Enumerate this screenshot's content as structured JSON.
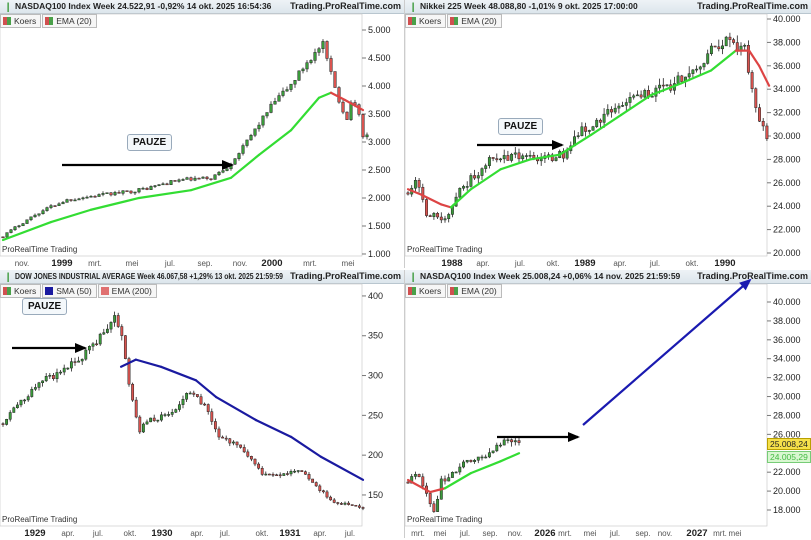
{
  "brand": "Trading.ProRealTime.com",
  "watermark": "ProRealTime Trading",
  "colors": {
    "up": "#3a9a3a",
    "down": "#d9534f",
    "ema_up": "#33dd33",
    "ema_down": "#dd4444",
    "sma": "#1a1aa0",
    "arrow_black": "#000000",
    "arrow_blue": "#1a1ab0",
    "tag_price": "#f5e04a",
    "tag_ema": "#d8f7d0"
  },
  "panels": [
    {
      "title": "NASDAQ100 Index Week 24.522,91 -0,92% 14 okt. 2025 16:54:36",
      "legend": [
        {
          "label": "Koers",
          "color": "#c05050"
        },
        {
          "label": "EMA (20)",
          "color": "#c05050"
        }
      ],
      "annotation": "PAUZE"
    },
    {
      "title": "Nikkei 225 Week 48.088,80 -1,01% 9 okt. 2025 17:00:00",
      "legend": [
        {
          "label": "Koers",
          "color": "#c05050"
        },
        {
          "label": "EMA (20)",
          "color": "#c05050"
        }
      ],
      "annotation": "PAUZE"
    },
    {
      "title": "DOW JONES INDUSTRIAL AVERAGE Week 46.067,58 +1,29% 13 okt. 2025 21:59:59",
      "legend": [
        {
          "label": "Koers",
          "color": "#c05050"
        },
        {
          "label": "SMA (50)",
          "color": "#1a1aa0"
        },
        {
          "label": "EMA (200)",
          "color": "#e07070"
        }
      ],
      "annotation": "PAUZE"
    },
    {
      "title": "NASDAQ100 Index Week 25.008,24 +0,06% 14 nov. 2025 21:59:59",
      "legend": [
        {
          "label": "Koers",
          "color": "#c05050"
        },
        {
          "label": "EMA (20)",
          "color": "#c05050"
        }
      ],
      "price_tag": "25.008,24",
      "ema_tag": "24.005,29"
    }
  ],
  "chart_data": [
    {
      "type": "candlestick",
      "title": "NASDAQ100 Index Week",
      "weeks": 91,
      "ylim": [
        964,
        5286
      ],
      "yticks": [
        {
          "v": 5000,
          "t": "5.000"
        },
        {
          "v": 4500,
          "t": "4.500"
        },
        {
          "v": 4000,
          "t": "4.000"
        },
        {
          "v": 3500,
          "t": "3.500"
        },
        {
          "v": 3000,
          "t": "3.000"
        },
        {
          "v": 2500,
          "t": "2.500"
        },
        {
          "v": 2000,
          "t": "2.000"
        },
        {
          "v": 1500,
          "t": "1.500"
        },
        {
          "v": 1000,
          "t": "1.000"
        }
      ],
      "xticks": [
        {
          "t": "nov.",
          "b": false
        },
        {
          "t": "1999",
          "b": true
        },
        {
          "t": "mrt.",
          "b": false
        },
        {
          "t": "mei",
          "b": false
        },
        {
          "t": "jul.",
          "b": false
        },
        {
          "t": "sep.",
          "b": false
        },
        {
          "t": "nov.",
          "b": false
        },
        {
          "t": "2000",
          "b": true
        },
        {
          "t": "mrt.",
          "b": false
        },
        {
          "t": "mei",
          "b": false
        }
      ],
      "close_path": [
        [
          0,
          1320
        ],
        [
          4,
          1520
        ],
        [
          8,
          1700
        ],
        [
          12,
          1850
        ],
        [
          16,
          1965
        ],
        [
          20,
          2010
        ],
        [
          24,
          2050
        ],
        [
          28,
          2085
        ],
        [
          32,
          2120
        ],
        [
          36,
          2175
        ],
        [
          40,
          2250
        ],
        [
          44,
          2320
        ],
        [
          48,
          2340
        ],
        [
          52,
          2355
        ],
        [
          56,
          2550
        ],
        [
          60,
          2900
        ],
        [
          64,
          3330
        ],
        [
          68,
          3730
        ],
        [
          72,
          4020
        ],
        [
          76,
          4430
        ],
        [
          80,
          4730
        ],
        [
          82,
          4200
        ],
        [
          84,
          3750
        ],
        [
          86,
          3400
        ],
        [
          87,
          3750
        ],
        [
          89,
          3480
        ],
        [
          90,
          3120
        ]
      ],
      "indicator": {
        "name": "EMA (20)",
        "points": [
          [
            0,
            1250
          ],
          [
            12,
            1570
          ],
          [
            22,
            1790
          ],
          [
            34,
            2000
          ],
          [
            47,
            2140
          ],
          [
            57,
            2360
          ],
          [
            64,
            2770
          ],
          [
            72,
            3210
          ],
          [
            79,
            3790
          ],
          [
            82,
            3880
          ],
          [
            85.5,
            3750
          ],
          [
            90,
            3570
          ]
        ],
        "down_from": 81
      }
    },
    {
      "type": "candlestick",
      "title": "Nikkei 225 Week",
      "weeks": 97,
      "ylim": [
        19744,
        40428
      ],
      "yticks": [
        {
          "v": 40000,
          "t": "40.000"
        },
        {
          "v": 38000,
          "t": "38.000"
        },
        {
          "v": 36000,
          "t": "36.000"
        },
        {
          "v": 34000,
          "t": "34.000"
        },
        {
          "v": 32000,
          "t": "32.000"
        },
        {
          "v": 30000,
          "t": "30.000"
        },
        {
          "v": 28000,
          "t": "28.000"
        },
        {
          "v": 26000,
          "t": "26.000"
        },
        {
          "v": 24000,
          "t": "24.000"
        },
        {
          "v": 22000,
          "t": "22.000"
        },
        {
          "v": 20000,
          "t": "20.000"
        }
      ],
      "xticks": [
        {
          "t": "1988",
          "b": true
        },
        {
          "t": "apr.",
          "b": false
        },
        {
          "t": "jul.",
          "b": false
        },
        {
          "t": "okt.",
          "b": false
        },
        {
          "t": "1989",
          "b": true
        },
        {
          "t": "apr.",
          "b": false
        },
        {
          "t": "jul.",
          "b": false
        },
        {
          "t": "okt.",
          "b": false
        },
        {
          "t": "1990",
          "b": true
        }
      ],
      "close_path": [
        [
          0,
          25400
        ],
        [
          2,
          26400
        ],
        [
          5,
          23250
        ],
        [
          8,
          23000
        ],
        [
          10,
          22800
        ],
        [
          14,
          25400
        ],
        [
          18,
          26600
        ],
        [
          22,
          27950
        ],
        [
          26,
          28300
        ],
        [
          30,
          28300
        ],
        [
          34,
          27900
        ],
        [
          38,
          28000
        ],
        [
          42,
          28500
        ],
        [
          46,
          30300
        ],
        [
          50,
          31000
        ],
        [
          54,
          32100
        ],
        [
          58,
          32700
        ],
        [
          62,
          33400
        ],
        [
          66,
          33800
        ],
        [
          70,
          34200
        ],
        [
          74,
          34900
        ],
        [
          78,
          35600
        ],
        [
          82,
          37200
        ],
        [
          85,
          38200
        ],
        [
          88,
          37800
        ],
        [
          91,
          37300
        ],
        [
          93,
          34000
        ],
        [
          95,
          31400
        ],
        [
          97,
          29700
        ]
      ],
      "indicator": {
        "name": "EMA (20)",
        "points": [
          [
            0,
            25450
          ],
          [
            3.5,
            25000
          ],
          [
            9,
            24150
          ],
          [
            11.6,
            23900
          ],
          [
            17,
            25450
          ],
          [
            25,
            27150
          ],
          [
            33,
            28000
          ],
          [
            41,
            28400
          ],
          [
            49.5,
            30100
          ],
          [
            57.6,
            31800
          ],
          [
            65.7,
            33500
          ],
          [
            73.8,
            34500
          ],
          [
            81.9,
            35600
          ],
          [
            88.6,
            37300
          ],
          [
            92.2,
            37300
          ],
          [
            94.9,
            36000
          ],
          [
            97.6,
            34300
          ]
        ],
        "down_before": 12,
        "down_from": 89
      }
    },
    {
      "type": "candlestick",
      "title": "DOW JONES INDUSTRIAL AVERAGE Week",
      "weeks": 100,
      "ylim": [
        111,
        415
      ],
      "yticks": [
        {
          "v": 400,
          "t": "400"
        },
        {
          "v": 350,
          "t": "350"
        },
        {
          "v": 300,
          "t": "300"
        },
        {
          "v": 250,
          "t": "250"
        },
        {
          "v": 200,
          "t": "200"
        },
        {
          "v": 150,
          "t": "150"
        }
      ],
      "xticks": [
        {
          "t": "1929",
          "b": true
        },
        {
          "t": "apr.",
          "b": false
        },
        {
          "t": "jul.",
          "b": false
        },
        {
          "t": "okt.",
          "b": false
        },
        {
          "t": "1930",
          "b": true
        },
        {
          "t": "apr.",
          "b": false
        },
        {
          "t": "jul.",
          "b": false
        },
        {
          "t": "okt.",
          "b": false
        },
        {
          "t": "1931",
          "b": true
        },
        {
          "t": "apr.",
          "b": false
        },
        {
          "t": "jul.",
          "b": false
        }
      ],
      "close_path": [
        [
          0,
          242
        ],
        [
          4,
          262
        ],
        [
          8,
          280
        ],
        [
          12,
          295
        ],
        [
          16,
          304
        ],
        [
          20,
          317
        ],
        [
          24,
          333
        ],
        [
          28,
          353
        ],
        [
          31,
          375
        ],
        [
          33,
          347
        ],
        [
          35,
          292
        ],
        [
          38,
          230
        ],
        [
          40,
          244
        ],
        [
          44,
          248
        ],
        [
          48,
          256
        ],
        [
          52,
          282
        ],
        [
          56,
          261
        ],
        [
          60,
          222
        ],
        [
          64,
          217
        ],
        [
          68,
          200
        ],
        [
          72,
          177
        ],
        [
          76,
          174
        ],
        [
          80,
          179
        ],
        [
          84,
          178
        ],
        [
          88,
          156
        ],
        [
          92,
          141
        ],
        [
          96,
          138
        ],
        [
          100,
          135
        ]
      ],
      "indicator": {
        "name": "SMA (50)",
        "points": [
          [
            32.8,
            311
          ],
          [
            36.9,
            320
          ],
          [
            43.9,
            311
          ],
          [
            53.6,
            294
          ],
          [
            59.2,
            273
          ],
          [
            70.3,
            244
          ],
          [
            80,
            223
          ],
          [
            88.3,
            198
          ],
          [
            100,
            169
          ]
        ]
      }
    },
    {
      "type": "candlestick",
      "title": "NASDAQ100 Index Week",
      "weeks": 30,
      "ylim": [
        16307,
        41905
      ],
      "yticks": [
        {
          "v": 40000,
          "t": "40.000"
        },
        {
          "v": 38000,
          "t": "38.000"
        },
        {
          "v": 36000,
          "t": "36.000"
        },
        {
          "v": 34000,
          "t": "34.000"
        },
        {
          "v": 32000,
          "t": "32.000"
        },
        {
          "v": 30000,
          "t": "30.000"
        },
        {
          "v": 28000,
          "t": "28.000"
        },
        {
          "v": 26000,
          "t": "26.000"
        },
        {
          "v": 22000,
          "t": "22.000"
        },
        {
          "v": 20000,
          "t": "20.000"
        },
        {
          "v": 18000,
          "t": "18.000"
        }
      ],
      "xticks": [
        {
          "t": "mrt.",
          "b": false
        },
        {
          "t": "mei",
          "b": false
        },
        {
          "t": "jul.",
          "b": false
        },
        {
          "t": "sep.",
          "b": false
        },
        {
          "t": "nov.",
          "b": false
        },
        {
          "t": "2026",
          "b": true
        },
        {
          "t": "mrt.",
          "b": false
        },
        {
          "t": "mei",
          "b": false
        },
        {
          "t": "jul.",
          "b": false
        },
        {
          "t": "sep.",
          "b": false
        },
        {
          "t": "nov.",
          "b": false
        },
        {
          "t": "2027",
          "b": true
        },
        {
          "t": "mrt.",
          "b": false
        },
        {
          "t": "mei",
          "b": false
        }
      ],
      "close_path": [
        [
          0,
          21170
        ],
        [
          2,
          22000
        ],
        [
          5,
          19900
        ],
        [
          7,
          17800
        ],
        [
          9,
          21000
        ],
        [
          14,
          22550
        ],
        [
          20,
          23600
        ],
        [
          25,
          25200
        ],
        [
          28,
          25200
        ],
        [
          30,
          25008
        ]
      ],
      "indicator": {
        "name": "EMA (20)",
        "points": [
          [
            0,
            21170
          ],
          [
            6,
            19900
          ],
          [
            10,
            20300
          ],
          [
            17,
            21900
          ],
          [
            25,
            23150
          ],
          [
            30,
            24005
          ]
        ],
        "down_before": 9
      }
    }
  ]
}
